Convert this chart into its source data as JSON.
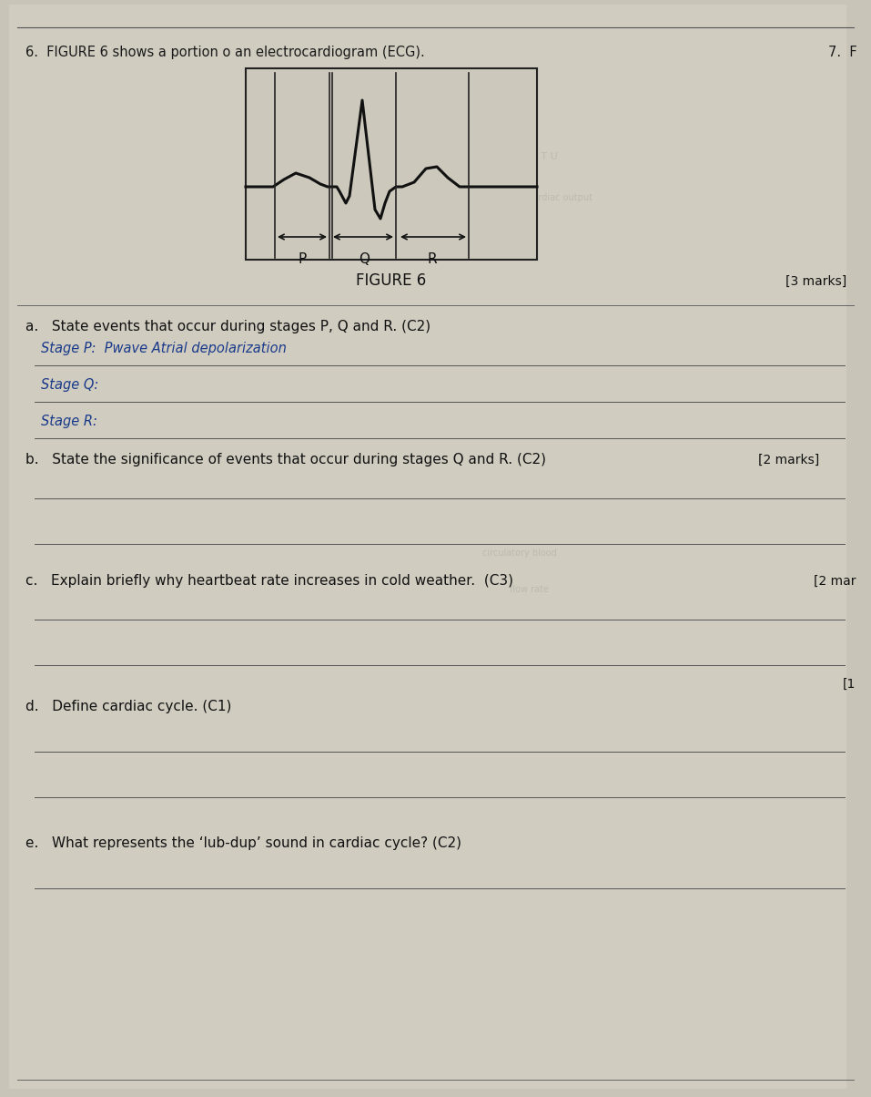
{
  "bg_color": "#c8c4b8",
  "page_bg": "#d4d0c8",
  "title_text": "6.  FIGURE 6 shows a portion o an electrocardiogram (ECG).",
  "figure_label": "FIGURE 6",
  "marks_a": "[3 marks]",
  "marks_b": "[2 marks]",
  "marks_c": "[2 mar",
  "marks_d": "[1",
  "right_num": "7.  F",
  "question_a": "a.   State events that occur during stages P, Q and R. (C2)",
  "answer_a1": "Stage P:  Pwave Atrial depolarization",
  "answer_a2": "Stage Q:",
  "answer_a3": "Stage R:",
  "question_b": "b.   State the significance of events that occur during stages Q and R. (C2)",
  "question_c": "c.   Explain briefly why heartbeat rate increases in cold weather.  (C3)",
  "question_d": "d.   Define cardiac cycle. (C1)",
  "question_e": "e.   What represents the ‘lub-dup’ sound in cardiac cycle? (C2)"
}
